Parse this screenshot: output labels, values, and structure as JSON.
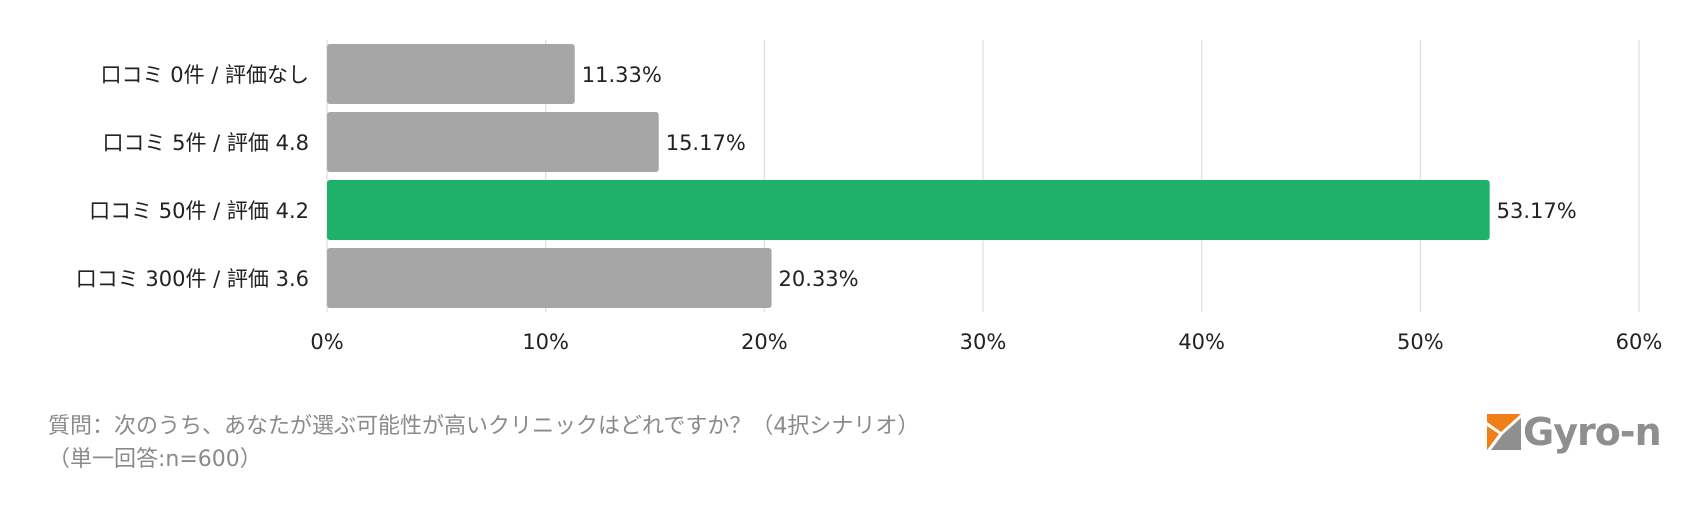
{
  "chart_data": {
    "type": "bar",
    "orientation": "horizontal",
    "categories": [
      "口コミ 0件 / 評価なし",
      "口コミ 5件 / 評価 4.8",
      "口コミ 50件 / 評価 4.2",
      "口コミ 300件 / 評価 3.6"
    ],
    "values": [
      11.33,
      15.17,
      53.17,
      20.33
    ],
    "value_labels": [
      "11.33%",
      "15.17%",
      "53.17%",
      "20.33%"
    ],
    "xlim": [
      0,
      60
    ],
    "xticks": [
      "0%",
      "10%",
      "20%",
      "30%",
      "40%",
      "50%",
      "60%"
    ],
    "grid": true,
    "colors": {
      "default": "#a6a6a6",
      "highlight": "#1fb16a",
      "grid": "#d9d9d9"
    },
    "highlight_index": 2
  },
  "caption": {
    "line1": "質問：次のうち、あなたが選ぶ可能性が高いクリニックはどれですか？（4択シナリオ）",
    "line2": "（単一回答:n=600）"
  },
  "logo": {
    "text": "Gyro-n",
    "mark_color": "#f07f1a"
  }
}
